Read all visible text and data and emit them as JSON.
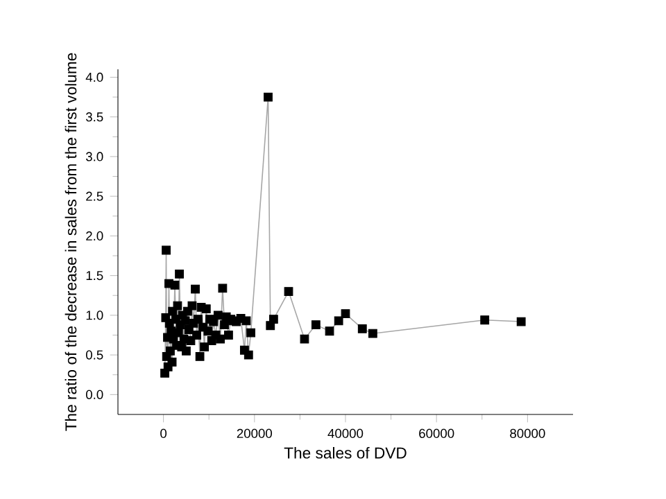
{
  "chart_data": {
    "type": "line",
    "xlabel": "The sales of DVD",
    "ylabel": "The ratio of the decrease in sales from the first volume",
    "xlim": [
      -10000,
      90000
    ],
    "ylim": [
      -0.25,
      4.1
    ],
    "xticks": [
      0,
      20000,
      40000,
      60000,
      80000
    ],
    "yticks": [
      {
        "value": 0,
        "label": "0.0"
      },
      {
        "value": 0.5,
        "label": "0.5"
      },
      {
        "value": 1,
        "label": "1.0"
      },
      {
        "value": 1.5,
        "label": "1.5"
      },
      {
        "value": 2,
        "label": "2.0"
      },
      {
        "value": 2.5,
        "label": "2.5"
      },
      {
        "value": 3,
        "label": "3.0"
      },
      {
        "value": 3.5,
        "label": "3.5"
      },
      {
        "value": 4,
        "label": "4.0"
      }
    ],
    "marker": "square",
    "line_style": "solid",
    "series": [
      {
        "color": "#000000",
        "x": [
          300,
          500,
          600,
          700,
          900,
          1000,
          1200,
          1300,
          1500,
          1700,
          1900,
          2000,
          2200,
          2500,
          2700,
          2900,
          3100,
          3300,
          3500,
          3700,
          4000,
          4200,
          4500,
          4800,
          5000,
          5300,
          5600,
          6000,
          6300,
          6600,
          7000,
          7300,
          7600,
          8000,
          8300,
          8700,
          9000,
          9400,
          9800,
          10200,
          10600,
          11000,
          11500,
          12000,
          12500,
          13000,
          13400,
          13800,
          14300,
          14800,
          15300,
          16000,
          17000,
          17800,
          18200,
          18700,
          19200,
          23000,
          23500,
          24200,
          27500,
          31000,
          33500,
          36500,
          38500,
          40000,
          43700,
          46000,
          70600,
          78600
        ],
        "values": [
          0.27,
          0.97,
          1.82,
          0.48,
          0.72,
          0.35,
          1.4,
          0.9,
          0.55,
          0.8,
          0.41,
          1.05,
          0.7,
          1.38,
          0.95,
          0.62,
          1.12,
          0.78,
          1.52,
          0.88,
          0.6,
          1.0,
          0.7,
          0.93,
          0.55,
          1.05,
          0.82,
          0.68,
          1.12,
          0.9,
          1.33,
          0.75,
          0.95,
          0.48,
          1.1,
          0.85,
          0.6,
          1.08,
          0.8,
          0.95,
          0.68,
          0.92,
          0.75,
          1.0,
          0.7,
          1.34,
          0.88,
          0.98,
          0.75,
          0.95,
          0.93,
          0.92,
          0.96,
          0.56,
          0.93,
          0.5,
          0.78,
          3.75,
          0.87,
          0.95,
          1.3,
          0.7,
          0.88,
          0.8,
          0.93,
          1.02,
          0.83,
          0.77,
          0.94,
          0.92
        ]
      }
    ]
  }
}
